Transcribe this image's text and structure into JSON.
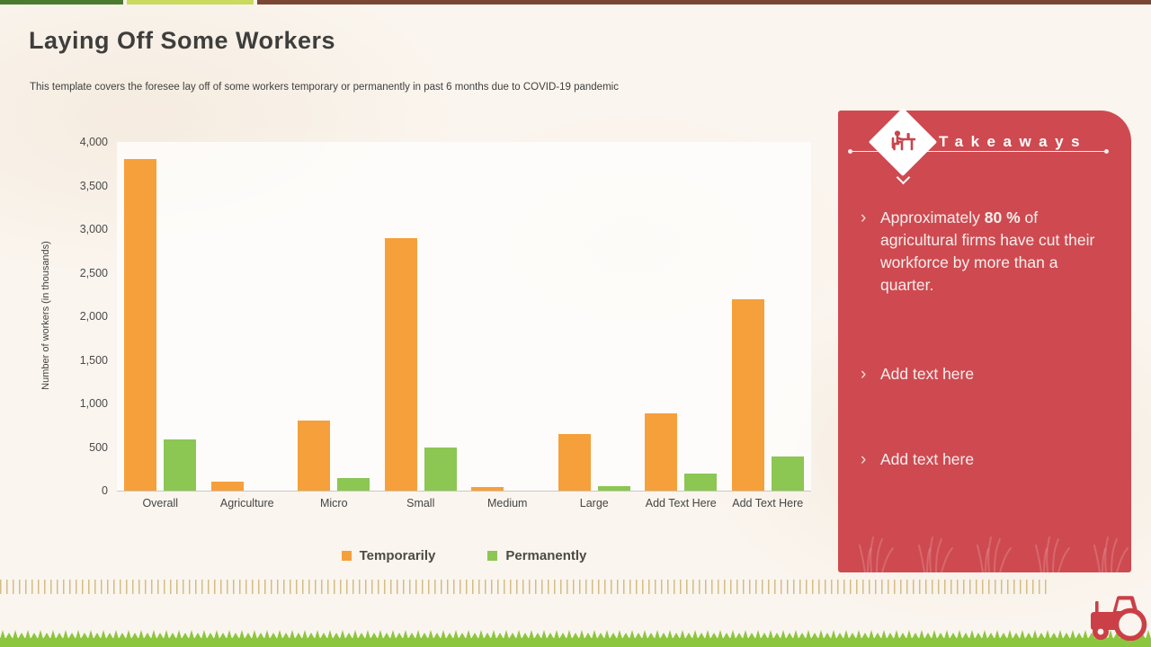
{
  "slide": {
    "title": "Laying Off Some Workers",
    "subtitle": "This template covers the foresee lay off of some workers temporary or permanently in past 6 months due to COVID-19 pandemic"
  },
  "colors": {
    "topbar_dark_green": "#4A7B2E",
    "topbar_light_green": "#C9DA5C",
    "topbar_brown": "#7A4734",
    "panel_red": "#CE4A50",
    "grass_green": "#8CC63F",
    "fringe_tan": "#D3BD86",
    "tractor_red": "#CB3F47"
  },
  "chart_data": {
    "type": "bar",
    "title": "",
    "categories": [
      "Overall",
      "Agriculture",
      "Micro",
      "Small",
      "Medium",
      "Large",
      "Add Text Here",
      "Add Text Here"
    ],
    "series": [
      {
        "name": "Temporarily",
        "color": "#F6A03C",
        "values": [
          3800,
          100,
          800,
          2900,
          40,
          650,
          890,
          2200
        ]
      },
      {
        "name": "Permanently",
        "color": "#8CC653",
        "values": [
          590,
          0,
          150,
          500,
          0,
          50,
          200,
          390
        ]
      }
    ],
    "xlabel": "",
    "ylabel": "Number of workers (in thousands)",
    "ylim": [
      0,
      4000
    ],
    "yticks": [
      "0",
      "500",
      "1,000",
      "1,500",
      "2,000",
      "2,500",
      "3,000",
      "3,500",
      "4,000"
    ],
    "grid": false,
    "legend_position": "bottom"
  },
  "takeaways": {
    "heading": "Takeaways",
    "bullet_marker": "›",
    "bullets": [
      {
        "prefix": "Approximately ",
        "bold": "80 %",
        "rest": " of agricultural firms have cut their workforce by more than a quarter."
      },
      {
        "prefix": "Add text here",
        "bold": "",
        "rest": ""
      },
      {
        "prefix": "Add text here",
        "bold": "",
        "rest": ""
      }
    ]
  }
}
